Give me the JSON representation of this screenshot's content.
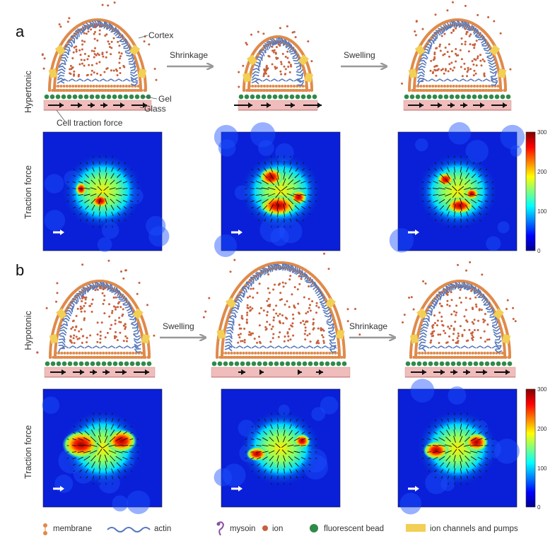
{
  "panels": {
    "a": {
      "letter": "a",
      "condition": "Hypertonic",
      "arrow1": "Shrinkage",
      "arrow2": "Swelling",
      "callouts": {
        "cortex": "Cortex",
        "gel": "Gel",
        "glass": "Glass",
        "traction": "Cell traction force"
      },
      "row_label": "Traction force"
    },
    "b": {
      "letter": "b",
      "condition": "Hypotonic",
      "arrow1": "Swelling",
      "arrow2": "Shrinkage",
      "row_label": "Traction force"
    }
  },
  "colorbar": {
    "ticks": [
      "300",
      "200",
      "100",
      "0"
    ],
    "max": 300,
    "min": 0
  },
  "legend": {
    "membrane": "membrane",
    "actin": "actin",
    "myosin": "mysoin",
    "ion": "ion",
    "bead": "fluorescent bead",
    "channels": "ion channels and pumps"
  },
  "colors": {
    "membrane": "#e08a4a",
    "actin": "#5577bb",
    "ion": "#c8603c",
    "bead": "#2f8a4a",
    "channel": "#f2cf55",
    "glass": "#f0bcbc",
    "arrow_gray": "#999999",
    "myosin": "#8a4fa0"
  }
}
